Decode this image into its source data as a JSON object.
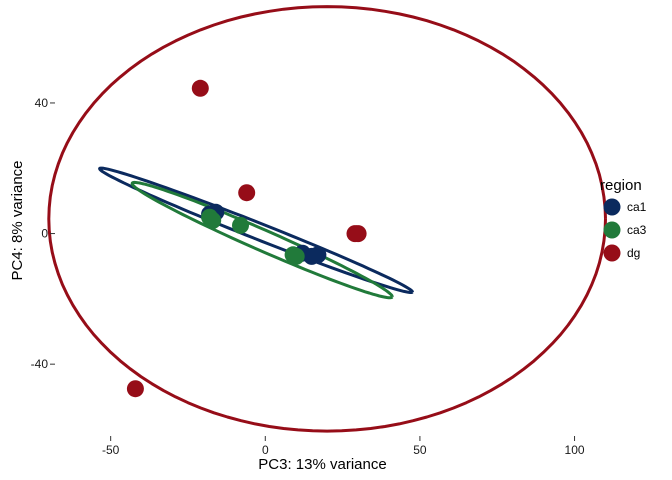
{
  "chart_data": {
    "type": "scatter",
    "title": "",
    "xlabel": "PC3: 13% variance",
    "ylabel": "PC4: 8% variance",
    "xlim": [
      -68,
      105
    ],
    "ylim": [
      -62,
      70
    ],
    "xticks": [
      -50,
      0,
      50,
      100
    ],
    "yticks": [
      -40,
      0,
      40
    ],
    "xtick_labels": [
      "-50",
      "0",
      "50",
      "100"
    ],
    "ytick_labels": [
      "-40",
      "0",
      "40"
    ],
    "grid": false,
    "legend": {
      "title": "region",
      "placement": "right"
    },
    "series": [
      {
        "name": "ca1",
        "color": "#0b2a5e",
        "points": [
          [
            -18,
            6
          ],
          [
            -16,
            6.5
          ],
          [
            12,
            -6
          ],
          [
            15,
            -7
          ],
          [
            17,
            -6.5
          ]
        ],
        "ellipse": {
          "cx": -3,
          "cy": 1,
          "rx": 54,
          "ry": 2.5,
          "angle_deg": -20.5
        }
      },
      {
        "name": "ca3",
        "color": "#217a3a",
        "points": [
          [
            -18,
            5
          ],
          [
            -17,
            4
          ],
          [
            -8,
            2.5
          ],
          [
            9,
            -6.5
          ],
          [
            10,
            -7
          ]
        ],
        "ellipse": {
          "cx": -1,
          "cy": -2,
          "rx": 45.5,
          "ry": 3.2,
          "angle_deg": -22.5
        }
      },
      {
        "name": "dg",
        "color": "#960d18",
        "points": [
          [
            -21,
            44.5
          ],
          [
            -6,
            12.5
          ],
          [
            29,
            0
          ],
          [
            30,
            0
          ],
          [
            -42,
            -47.5
          ]
        ],
        "ellipse": {
          "cx": 20,
          "cy": 4.5,
          "rx": 90,
          "ry": 65,
          "angle_deg": 0
        }
      }
    ]
  }
}
